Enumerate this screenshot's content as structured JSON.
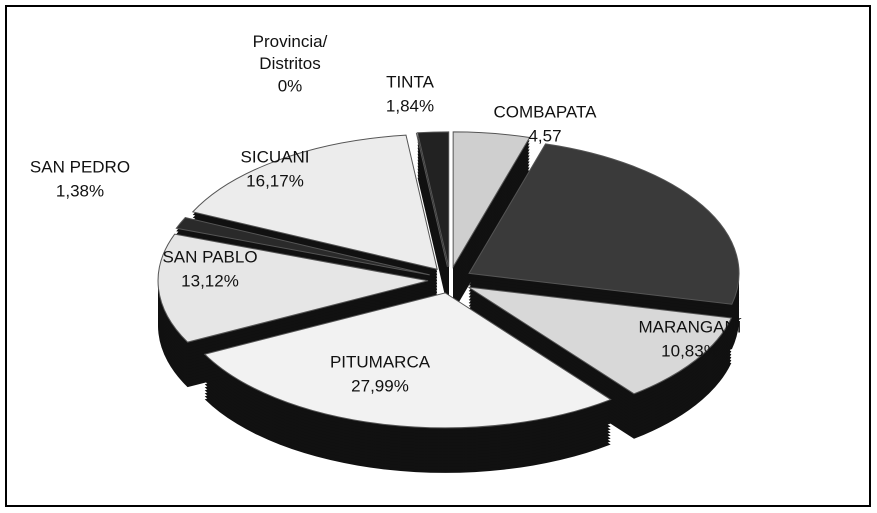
{
  "chart_data": {
    "type": "pie",
    "categories": [
      "Provincia/ Distritos",
      "TINTA",
      "COMBAPATA",
      null,
      "MARANGANÍ",
      "PITUMARCA",
      "SAN PABLO",
      "SAN PEDRO",
      "SICUANI"
    ],
    "values": [
      0,
      1.84,
      4.57,
      24.1,
      10.83,
      27.99,
      13.12,
      1.38,
      16.17
    ],
    "value_labels": [
      "0%",
      "1,84%",
      "4,57",
      null,
      "10,83%",
      "27,99%",
      "13,12%",
      "1,38%",
      "16,17%"
    ],
    "colors": [
      "#ffffff",
      "#222222",
      "#cfcfcf",
      "#3a3a3a",
      "#d8d8d8",
      "#f2f2f2",
      "#e6e6e6",
      "#2a2a2a",
      "#ececec"
    ]
  }
}
